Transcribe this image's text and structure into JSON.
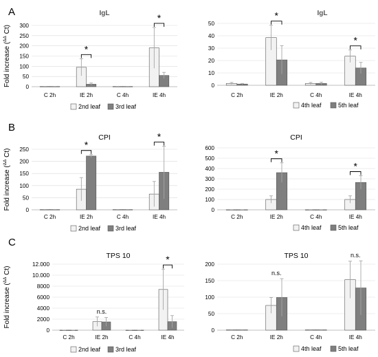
{
  "figure": {
    "y_axis_label": "Fold increase (",
    "y_axis_label_sup": "ΔΔ",
    "y_axis_label_end": " Ct)",
    "significance_mark": "*",
    "ns_mark": "n.s.",
    "colors": {
      "light_bar": "#f2f2f2",
      "dark_bar": "#7f7f7f",
      "bar_stroke": "#555555",
      "axis": "#bfbfbf",
      "grid": "#d9d9d9",
      "error": "#a6a6a6"
    }
  },
  "chart_data": [
    {
      "panel": "A",
      "title": "IgL",
      "type": "bar",
      "categories": [
        "C 2h",
        "IE 2h",
        "C 4h",
        "IE 4h"
      ],
      "ylim": [
        0,
        300
      ],
      "yticks": [
        0,
        50,
        100,
        150,
        200,
        250,
        300
      ],
      "ytick_labels": [
        "0",
        "50",
        "100",
        "150",
        "200",
        "250",
        "300"
      ],
      "series": [
        {
          "name": "2nd leaf",
          "values": [
            1,
            95,
            1,
            190
          ],
          "errors": [
            0.5,
            42,
            0.5,
            100
          ]
        },
        {
          "name": "3rd leaf",
          "values": [
            1,
            12,
            1,
            55
          ],
          "errors": [
            0.5,
            6,
            0.5,
            15
          ]
        }
      ],
      "annotations": [
        {
          "category": 1,
          "text": "*"
        },
        {
          "category": 3,
          "text": "*"
        }
      ]
    },
    {
      "panel": "",
      "title": "IgL",
      "type": "bar",
      "categories": [
        "C 2h",
        "IE 2h",
        "C 4h",
        "IE 4h"
      ],
      "ylim": [
        0,
        50
      ],
      "yticks": [
        0,
        10,
        20,
        30,
        40,
        50
      ],
      "ytick_labels": [
        "0",
        "10",
        "20",
        "30",
        "40",
        "50"
      ],
      "series": [
        {
          "name": "4th leaf",
          "values": [
            1.5,
            38.5,
            1.5,
            23.5
          ],
          "errors": [
            0.8,
            10,
            0.8,
            5
          ]
        },
        {
          "name": "5th leaf",
          "values": [
            1,
            20.5,
            1.5,
            14
          ],
          "errors": [
            0.5,
            11.5,
            1,
            4.5
          ]
        }
      ],
      "annotations": [
        {
          "category": 1,
          "text": "*"
        },
        {
          "category": 3,
          "text": "*"
        }
      ]
    },
    {
      "panel": "B",
      "title": "CPI",
      "type": "bar",
      "categories": [
        "C 2h",
        "IE 2h",
        "C 4h",
        "IE 4h"
      ],
      "ylim": [
        0,
        250
      ],
      "yticks": [
        0,
        50,
        100,
        150,
        200,
        250
      ],
      "ytick_labels": [
        "0",
        "50",
        "100",
        "150",
        "200",
        "250"
      ],
      "series": [
        {
          "name": "2nd leaf",
          "values": [
            1,
            85,
            1,
            65
          ],
          "errors": [
            0.5,
            48,
            0.5,
            52
          ]
        },
        {
          "name": "3rd leaf",
          "values": [
            1,
            222,
            1,
            155
          ],
          "errors": [
            0.5,
            6,
            0.5,
            110
          ]
        }
      ],
      "annotations": [
        {
          "category": 1,
          "text": "*"
        },
        {
          "category": 3,
          "text": "*"
        }
      ]
    },
    {
      "panel": "",
      "title": "CPI",
      "type": "bar",
      "categories": [
        "C 2h",
        "IE 2h",
        "C 4h",
        "IE 4h"
      ],
      "ylim": [
        0,
        600
      ],
      "yticks": [
        0,
        100,
        200,
        300,
        400,
        500,
        600
      ],
      "ytick_labels": [
        "0",
        "100",
        "200",
        "300",
        "400",
        "500",
        "600"
      ],
      "series": [
        {
          "name": "4th leaf",
          "values": [
            1,
            100,
            1,
            100
          ],
          "errors": [
            0.5,
            35,
            0.5,
            35
          ]
        },
        {
          "name": "5th leaf",
          "values": [
            1,
            360,
            1,
            265
          ],
          "errors": [
            0.5,
            95,
            0.5,
            65
          ]
        }
      ],
      "annotations": [
        {
          "category": 1,
          "text": "*"
        },
        {
          "category": 3,
          "text": "*"
        }
      ]
    },
    {
      "panel": "C",
      "title": "TPS 10",
      "type": "bar",
      "categories": [
        "C 2h",
        "IE 2h",
        "C 4h",
        "IE 4h"
      ],
      "ylim": [
        0,
        12000
      ],
      "yticks": [
        0,
        2000,
        4000,
        6000,
        8000,
        10000,
        12000
      ],
      "ytick_labels": [
        "0",
        "2000",
        "4000",
        "6000",
        "8000",
        "10.000",
        "12.000"
      ],
      "series": [
        {
          "name": "2nd leaf",
          "values": [
            10,
            1550,
            10,
            7400
          ],
          "errors": [
            5,
            850,
            5,
            3700
          ]
        },
        {
          "name": "3rd leaf",
          "values": [
            10,
            1500,
            10,
            1550
          ],
          "errors": [
            5,
            800,
            5,
            1100
          ]
        }
      ],
      "annotations": [
        {
          "category": 1,
          "text": "n.s."
        },
        {
          "category": 3,
          "text": "*"
        }
      ]
    },
    {
      "panel": "",
      "title": "TPS 10",
      "type": "bar",
      "categories": [
        "C 2h",
        "IE 2h",
        "C 4h",
        "IE 4h"
      ],
      "ylim": [
        0,
        200
      ],
      "yticks": [
        0,
        50,
        100,
        150,
        200
      ],
      "ytick_labels": [
        "0",
        "50",
        "100",
        "150",
        "200"
      ],
      "series": [
        {
          "name": "4th leaf",
          "values": [
            1,
            75,
            1,
            153
          ],
          "errors": [
            0.5,
            24,
            0.5,
            56
          ]
        },
        {
          "name": "5th leaf",
          "values": [
            1,
            99,
            1,
            128
          ],
          "errors": [
            0.5,
            57,
            0.5,
            82
          ]
        }
      ],
      "annotations": [
        {
          "category": 1,
          "text": "n.s."
        },
        {
          "category": 3,
          "text": "n.s."
        }
      ]
    }
  ]
}
